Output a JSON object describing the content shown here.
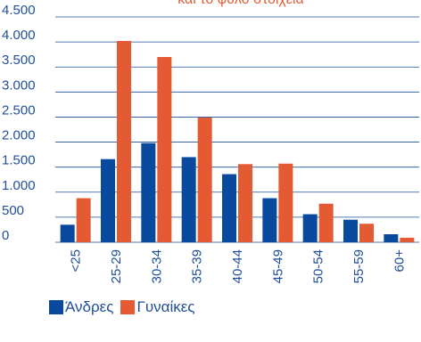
{
  "chart_data": {
    "type": "bar",
    "title": "και το φύλο στοιχεία",
    "categories": [
      "<25",
      "25-29",
      "30-34",
      "35-39",
      "40-44",
      "45-49",
      "50-54",
      "55-59",
      "60+"
    ],
    "series": [
      {
        "name": "Άνδρες",
        "values": [
          350,
          1660,
          1980,
          1700,
          1360,
          880,
          560,
          450,
          160
        ],
        "color": "#0a4a9e"
      },
      {
        "name": "Γυναίκες",
        "values": [
          880,
          4020,
          3700,
          2490,
          1560,
          1570,
          770,
          370,
          90
        ],
        "color": "#e45a33"
      }
    ],
    "ylim": [
      0,
      4500
    ],
    "yticks": [
      0,
      500,
      1000,
      1500,
      2000,
      2500,
      3000,
      3500,
      4000,
      4500
    ],
    "ytick_labels": [
      "0",
      "500",
      "1.000",
      "1.500",
      "2.000",
      "2.500",
      "3.000",
      "3.500",
      "4.000",
      "4.500"
    ],
    "grid": true,
    "legend_position": "bottom-left",
    "colors": {
      "axis_text": "#1f4e9a",
      "grid": "#1f4e9a",
      "title": "#e45a33"
    }
  }
}
